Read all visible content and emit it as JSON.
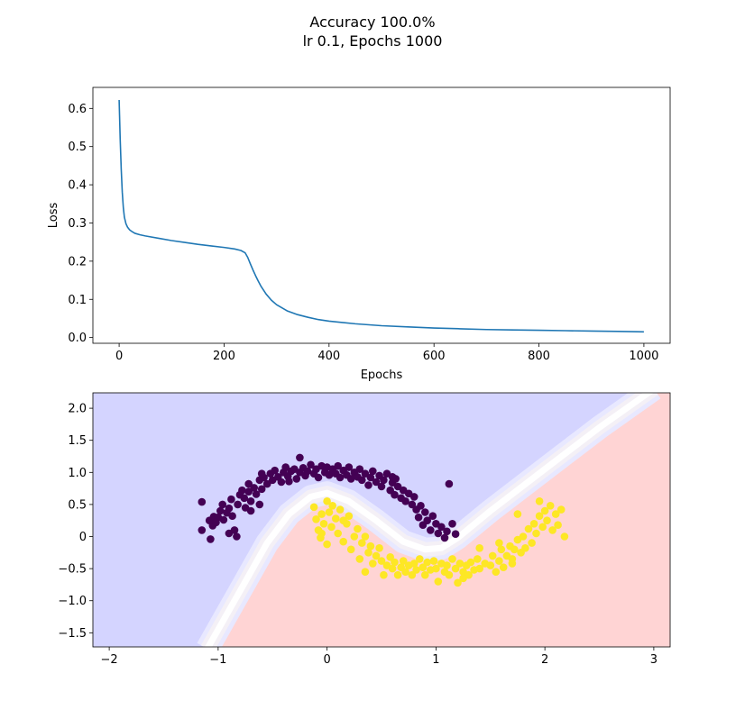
{
  "title_lines": [
    "Accuracy 100.0%",
    "lr 0.1, Epochs 1000"
  ],
  "chart_data": [
    {
      "type": "line",
      "title": "",
      "xlabel": "Epochs",
      "ylabel": "Loss",
      "xlim": [
        -50,
        1050
      ],
      "ylim": [
        -0.015,
        0.655
      ],
      "xticks": [
        0,
        200,
        400,
        600,
        800,
        1000
      ],
      "yticks": [
        0.0,
        0.1,
        0.2,
        0.3,
        0.4,
        0.5,
        0.6
      ],
      "series": [
        {
          "color": "#1f77b4",
          "x": [
            0,
            2,
            4,
            6,
            8,
            10,
            13,
            16,
            20,
            25,
            30,
            40,
            50,
            75,
            100,
            125,
            150,
            175,
            200,
            220,
            232,
            240,
            245,
            250,
            255,
            260,
            265,
            270,
            280,
            290,
            300,
            320,
            340,
            360,
            380,
            400,
            450,
            500,
            550,
            600,
            650,
            700,
            750,
            800,
            850,
            900,
            950,
            1000
          ],
          "y": [
            0.622,
            0.52,
            0.44,
            0.38,
            0.34,
            0.315,
            0.298,
            0.289,
            0.282,
            0.277,
            0.273,
            0.269,
            0.266,
            0.26,
            0.254,
            0.249,
            0.244,
            0.24,
            0.236,
            0.232,
            0.228,
            0.222,
            0.21,
            0.193,
            0.177,
            0.162,
            0.148,
            0.135,
            0.114,
            0.098,
            0.086,
            0.07,
            0.06,
            0.053,
            0.047,
            0.043,
            0.036,
            0.031,
            0.028,
            0.025,
            0.023,
            0.021,
            0.02,
            0.019,
            0.018,
            0.017,
            0.016,
            0.015
          ]
        }
      ],
      "grid": false
    },
    {
      "type": "scatter",
      "title": "",
      "xlabel": "",
      "ylabel": "",
      "xlim": [
        -2.15,
        3.15
      ],
      "ylim": [
        -1.72,
        2.24
      ],
      "xticks": [
        -2,
        -1,
        0,
        1,
        2,
        3
      ],
      "yticks": [
        -1.5,
        -1.0,
        -0.5,
        0.0,
        0.5,
        1.0,
        1.5,
        2.0
      ],
      "background": {
        "class0_color": "#d4d4ff",
        "class1_color": "#ffd4d4",
        "boundary_color": "#ffffff"
      },
      "classes": [
        {
          "label": 0,
          "color": "#440154"
        },
        {
          "label": 1,
          "color": "#fde725"
        }
      ],
      "points": [
        [
          -1.15,
          0.54,
          0
        ],
        [
          -1.15,
          0.1,
          0
        ],
        [
          -1.07,
          -0.04,
          0
        ],
        [
          -1.05,
          0.17,
          0
        ],
        [
          -1.08,
          0.25,
          0
        ],
        [
          -1.04,
          0.31,
          0
        ],
        [
          -1.0,
          0.3,
          0
        ],
        [
          -1.02,
          0.22,
          0
        ],
        [
          -0.98,
          0.4,
          0
        ],
        [
          -0.95,
          0.26,
          0
        ],
        [
          -0.96,
          0.5,
          0
        ],
        [
          -0.92,
          0.37,
          0
        ],
        [
          -0.9,
          0.44,
          0
        ],
        [
          -0.88,
          0.58,
          0
        ],
        [
          -0.9,
          0.05,
          0
        ],
        [
          -0.85,
          0.1,
          0
        ],
        [
          -0.83,
          0.0,
          0
        ],
        [
          -0.87,
          0.32,
          0
        ],
        [
          -0.82,
          0.5,
          0
        ],
        [
          -0.8,
          0.65,
          0
        ],
        [
          -0.78,
          0.72,
          0
        ],
        [
          -0.76,
          0.6,
          0
        ],
        [
          -0.75,
          0.45,
          0
        ],
        [
          -0.72,
          0.7,
          0
        ],
        [
          -0.7,
          0.55,
          0
        ],
        [
          -0.72,
          0.82,
          0
        ],
        [
          -0.67,
          0.76,
          0
        ],
        [
          -0.65,
          0.66,
          0
        ],
        [
          -0.62,
          0.88,
          0
        ],
        [
          -0.6,
          0.74,
          0
        ],
        [
          -0.58,
          0.92,
          0
        ],
        [
          -0.55,
          0.82,
          0
        ],
        [
          -0.52,
          0.98,
          0
        ],
        [
          -0.5,
          0.88,
          0
        ],
        [
          -0.48,
          1.03,
          0
        ],
        [
          -0.45,
          0.93,
          0
        ],
        [
          -0.42,
          0.85,
          0
        ],
        [
          -0.4,
          1.0,
          0
        ],
        [
          -0.38,
          1.08,
          0
        ],
        [
          -0.36,
          0.94,
          0
        ],
        [
          -0.33,
          1.02,
          0
        ],
        [
          -0.3,
          1.05,
          0
        ],
        [
          -0.28,
          0.9,
          0
        ],
        [
          -0.25,
          1.0,
          0
        ],
        [
          -0.22,
          1.07,
          0
        ],
        [
          -0.2,
          0.95,
          0
        ],
        [
          -0.18,
          1.02,
          0
        ],
        [
          -0.15,
          1.12,
          0
        ],
        [
          -0.12,
          0.98,
          0
        ],
        [
          -0.1,
          1.05,
          0
        ],
        [
          -0.08,
          0.92,
          0
        ],
        [
          -0.05,
          1.1,
          0
        ],
        [
          -0.02,
          1.0,
          0
        ],
        [
          0.0,
          1.08,
          0
        ],
        [
          0.02,
          0.96,
          0
        ],
        [
          0.05,
          1.05,
          0
        ],
        [
          0.08,
          0.98,
          0
        ],
        [
          0.1,
          1.1,
          0
        ],
        [
          0.12,
          0.92,
          0
        ],
        [
          0.15,
          1.03,
          0
        ],
        [
          0.18,
          0.96,
          0
        ],
        [
          0.2,
          1.08,
          0
        ],
        [
          0.22,
          0.9,
          0
        ],
        [
          0.25,
          1.0,
          0
        ],
        [
          0.28,
          0.93,
          0
        ],
        [
          0.3,
          1.05,
          0
        ],
        [
          0.32,
          0.88,
          0
        ],
        [
          0.35,
          0.98,
          0
        ],
        [
          0.38,
          0.8,
          0
        ],
        [
          0.4,
          0.92,
          0
        ],
        [
          0.42,
          1.02,
          0
        ],
        [
          0.45,
          0.85,
          0
        ],
        [
          0.48,
          0.95,
          0
        ],
        [
          0.5,
          0.78,
          0
        ],
        [
          0.52,
          0.88,
          0
        ],
        [
          0.55,
          0.98,
          0
        ],
        [
          0.58,
          0.72,
          0
        ],
        [
          0.6,
          0.84,
          0
        ],
        [
          0.62,
          0.65,
          0
        ],
        [
          0.65,
          0.78,
          0
        ],
        [
          0.63,
          0.9,
          0
        ],
        [
          0.68,
          0.6,
          0
        ],
        [
          0.7,
          0.72,
          0
        ],
        [
          0.72,
          0.55,
          0
        ],
        [
          0.75,
          0.67,
          0
        ],
        [
          0.78,
          0.5,
          0
        ],
        [
          0.8,
          0.62,
          0
        ],
        [
          0.82,
          0.42,
          0
        ],
        [
          0.84,
          0.3,
          0
        ],
        [
          0.86,
          0.48,
          0
        ],
        [
          0.88,
          0.18,
          0
        ],
        [
          0.9,
          0.38,
          0
        ],
        [
          0.92,
          0.25,
          0
        ],
        [
          0.95,
          0.1,
          0
        ],
        [
          0.97,
          0.32,
          0
        ],
        [
          1.0,
          0.2,
          0
        ],
        [
          1.02,
          0.05,
          0
        ],
        [
          1.05,
          0.15,
          0
        ],
        [
          1.08,
          -0.02,
          0
        ],
        [
          1.1,
          0.08,
          0
        ],
        [
          1.12,
          0.82,
          0
        ],
        [
          -0.25,
          1.23,
          0
        ],
        [
          -0.35,
          0.86,
          0
        ],
        [
          -0.6,
          0.98,
          0
        ],
        [
          0.6,
          0.93,
          0
        ],
        [
          1.15,
          0.2,
          0
        ],
        [
          1.18,
          0.04,
          0
        ],
        [
          -0.62,
          0.5,
          0
        ],
        [
          -0.7,
          0.4,
          0
        ],
        [
          -0.12,
          0.46,
          1
        ],
        [
          -0.1,
          0.27,
          1
        ],
        [
          -0.08,
          0.1,
          1
        ],
        [
          -0.05,
          0.35,
          1
        ],
        [
          -0.06,
          -0.02,
          1
        ],
        [
          -0.03,
          0.2,
          1
        ],
        [
          0.0,
          0.55,
          1
        ],
        [
          0.02,
          0.38,
          1
        ],
        [
          0.0,
          -0.12,
          1
        ],
        [
          0.04,
          0.15,
          1
        ],
        [
          0.05,
          0.48,
          1
        ],
        [
          0.08,
          0.28,
          1
        ],
        [
          0.1,
          0.05,
          1
        ],
        [
          0.12,
          0.42,
          1
        ],
        [
          0.15,
          -0.08,
          1
        ],
        [
          0.18,
          0.2,
          1
        ],
        [
          0.2,
          0.32,
          1
        ],
        [
          0.22,
          -0.2,
          1
        ],
        [
          0.25,
          0.0,
          1
        ],
        [
          0.28,
          0.12,
          1
        ],
        [
          0.3,
          -0.35,
          1
        ],
        [
          0.32,
          -0.1,
          1
        ],
        [
          0.35,
          0.0,
          1
        ],
        [
          0.38,
          -0.25,
          1
        ],
        [
          0.4,
          -0.15,
          1
        ],
        [
          0.42,
          -0.42,
          1
        ],
        [
          0.45,
          -0.3,
          1
        ],
        [
          0.48,
          -0.18,
          1
        ],
        [
          0.5,
          -0.38,
          1
        ],
        [
          0.52,
          -0.6,
          1
        ],
        [
          0.55,
          -0.45,
          1
        ],
        [
          0.58,
          -0.32,
          1
        ],
        [
          0.6,
          -0.5,
          1
        ],
        [
          0.62,
          -0.4,
          1
        ],
        [
          0.65,
          -0.6,
          1
        ],
        [
          0.68,
          -0.48,
          1
        ],
        [
          0.7,
          -0.38,
          1
        ],
        [
          0.72,
          -0.55,
          1
        ],
        [
          0.75,
          -0.45,
          1
        ],
        [
          0.78,
          -0.6,
          1
        ],
        [
          0.8,
          -0.42,
          1
        ],
        [
          0.82,
          -0.52,
          1
        ],
        [
          0.85,
          -0.35,
          1
        ],
        [
          0.88,
          -0.48,
          1
        ],
        [
          0.9,
          -0.6,
          1
        ],
        [
          0.92,
          -0.4,
          1
        ],
        [
          0.95,
          -0.52,
          1
        ],
        [
          0.98,
          -0.38,
          1
        ],
        [
          1.0,
          -0.5,
          1
        ],
        [
          1.02,
          -0.7,
          1
        ],
        [
          1.05,
          -0.42,
          1
        ],
        [
          1.08,
          -0.55,
          1
        ],
        [
          1.1,
          -0.45,
          1
        ],
        [
          1.12,
          -0.6,
          1
        ],
        [
          1.15,
          -0.35,
          1
        ],
        [
          1.18,
          -0.5,
          1
        ],
        [
          1.2,
          -0.72,
          1
        ],
        [
          1.22,
          -0.42,
          1
        ],
        [
          1.25,
          -0.55,
          1
        ],
        [
          1.28,
          -0.45,
          1
        ],
        [
          1.3,
          -0.6,
          1
        ],
        [
          1.32,
          -0.4,
          1
        ],
        [
          1.35,
          -0.52,
          1
        ],
        [
          1.38,
          -0.35,
          1
        ],
        [
          1.4,
          -0.5,
          1
        ],
        [
          1.45,
          -0.42,
          1
        ],
        [
          1.5,
          -0.45,
          1
        ],
        [
          1.52,
          -0.3,
          1
        ],
        [
          1.55,
          -0.55,
          1
        ],
        [
          1.58,
          -0.38,
          1
        ],
        [
          1.6,
          -0.2,
          1
        ],
        [
          1.62,
          -0.48,
          1
        ],
        [
          1.65,
          -0.3,
          1
        ],
        [
          1.68,
          -0.15,
          1
        ],
        [
          1.7,
          -0.35,
          1
        ],
        [
          1.72,
          -0.2,
          1
        ],
        [
          1.75,
          -0.05,
          1
        ],
        [
          1.78,
          -0.25,
          1
        ],
        [
          1.8,
          0.0,
          1
        ],
        [
          1.82,
          -0.18,
          1
        ],
        [
          1.85,
          0.12,
          1
        ],
        [
          1.88,
          -0.1,
          1
        ],
        [
          1.9,
          0.2,
          1
        ],
        [
          1.92,
          0.05,
          1
        ],
        [
          1.95,
          0.32,
          1
        ],
        [
          1.98,
          0.15,
          1
        ],
        [
          2.0,
          0.4,
          1
        ],
        [
          2.02,
          0.25,
          1
        ],
        [
          2.05,
          0.48,
          1
        ],
        [
          2.07,
          0.1,
          1
        ],
        [
          2.1,
          0.35,
          1
        ],
        [
          2.12,
          0.18,
          1
        ],
        [
          2.15,
          0.42,
          1
        ],
        [
          2.18,
          0.0,
          1
        ],
        [
          1.95,
          0.55,
          1
        ],
        [
          1.75,
          0.35,
          1
        ],
        [
          1.58,
          -0.1,
          1
        ],
        [
          1.4,
          -0.18,
          1
        ],
        [
          1.25,
          -0.65,
          1
        ],
        [
          0.35,
          -0.55,
          1
        ],
        [
          0.15,
          0.25,
          1
        ],
        [
          -0.05,
          0.05,
          1
        ],
        [
          1.7,
          -0.42,
          1
        ]
      ]
    }
  ]
}
